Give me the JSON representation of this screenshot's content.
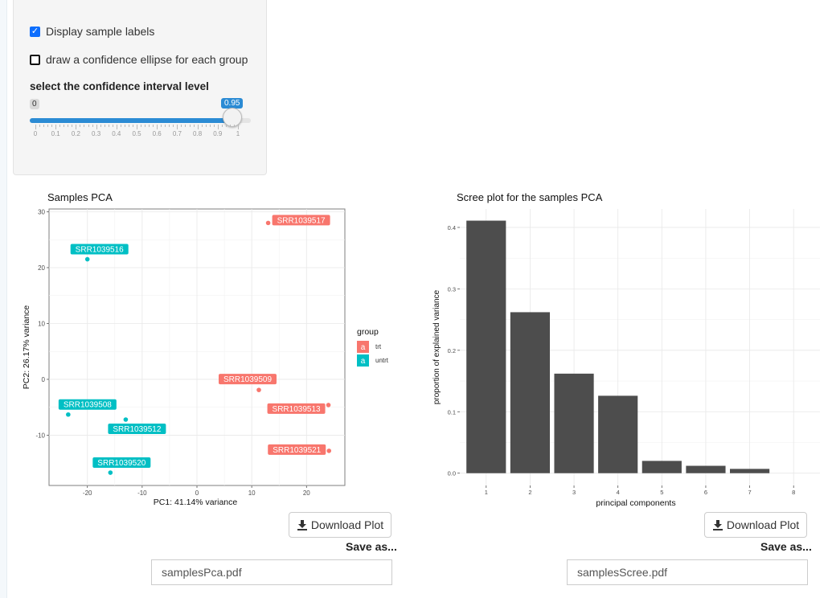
{
  "controls": {
    "display_labels": {
      "label": "Display sample labels",
      "checked": true
    },
    "ellipse": {
      "label": "draw a confidence ellipse for each group",
      "checked": false
    },
    "slider": {
      "label": "select the confidence interval level",
      "min_label": "0",
      "value_label": "0.95",
      "value": 0.95,
      "ticks": [
        "0",
        "0.1",
        "0.2",
        "0.3",
        "0.4",
        "0.5",
        "0.6",
        "0.7",
        "0.8",
        "0.9",
        "1"
      ]
    }
  },
  "pca_panel": {
    "download_label": "Download Plot",
    "save_as": "Save as...",
    "filename": "samplesPca.pdf"
  },
  "scree_panel": {
    "download_label": "Download Plot",
    "save_as": "Save as...",
    "filename": "samplesScree.pdf"
  },
  "colors": {
    "trt": "#F8766D",
    "untrt": "#00BFC4",
    "bar": "#4d4d4d",
    "accent": "#2b8bd4"
  },
  "chart_data": [
    {
      "type": "scatter",
      "title": "Samples PCA",
      "xlabel": "PC1: 41.14% variance",
      "ylabel": "PC2: 26.17% variance",
      "xlim": [
        -27,
        27
      ],
      "ylim": [
        -19,
        30.5
      ],
      "xticks": [
        -20,
        -10,
        0,
        10,
        20
      ],
      "yticks": [
        -10,
        0,
        10,
        20,
        30
      ],
      "legend": {
        "title": "group",
        "key_glyph": "a",
        "position": "right",
        "entries": [
          "trt",
          "untrt"
        ]
      },
      "points": [
        {
          "name": "SRR1039517",
          "group": "trt",
          "x": 13.0,
          "y": 28.0
        },
        {
          "name": "SRR1039516",
          "group": "untrt",
          "x": -20.0,
          "y": 21.5
        },
        {
          "name": "SRR1039509",
          "group": "trt",
          "x": 11.3,
          "y": -1.9
        },
        {
          "name": "SRR1039513",
          "group": "trt",
          "x": 24.0,
          "y": -4.6
        },
        {
          "name": "SRR1039508",
          "group": "untrt",
          "x": -23.5,
          "y": -6.3
        },
        {
          "name": "SRR1039512",
          "group": "untrt",
          "x": -13.0,
          "y": -7.2
        },
        {
          "name": "SRR1039521",
          "group": "trt",
          "x": 24.1,
          "y": -12.8
        },
        {
          "name": "SRR1039520",
          "group": "untrt",
          "x": -15.8,
          "y": -16.7
        }
      ]
    },
    {
      "type": "bar",
      "title": "Scree plot for the samples PCA",
      "xlabel": "principal components",
      "ylabel": "proportion of explained variance",
      "categories": [
        "1",
        "2",
        "3",
        "4",
        "5",
        "6",
        "7",
        "8"
      ],
      "values": [
        0.411,
        0.262,
        0.162,
        0.126,
        0.02,
        0.012,
        0.007,
        0.0
      ],
      "ylim": [
        -0.02,
        0.43
      ],
      "yticks": [
        0.0,
        0.1,
        0.2,
        0.3,
        0.4
      ],
      "ytick_labels": [
        "0.0",
        "0.1",
        "0.2",
        "0.3",
        "0.4"
      ]
    }
  ]
}
